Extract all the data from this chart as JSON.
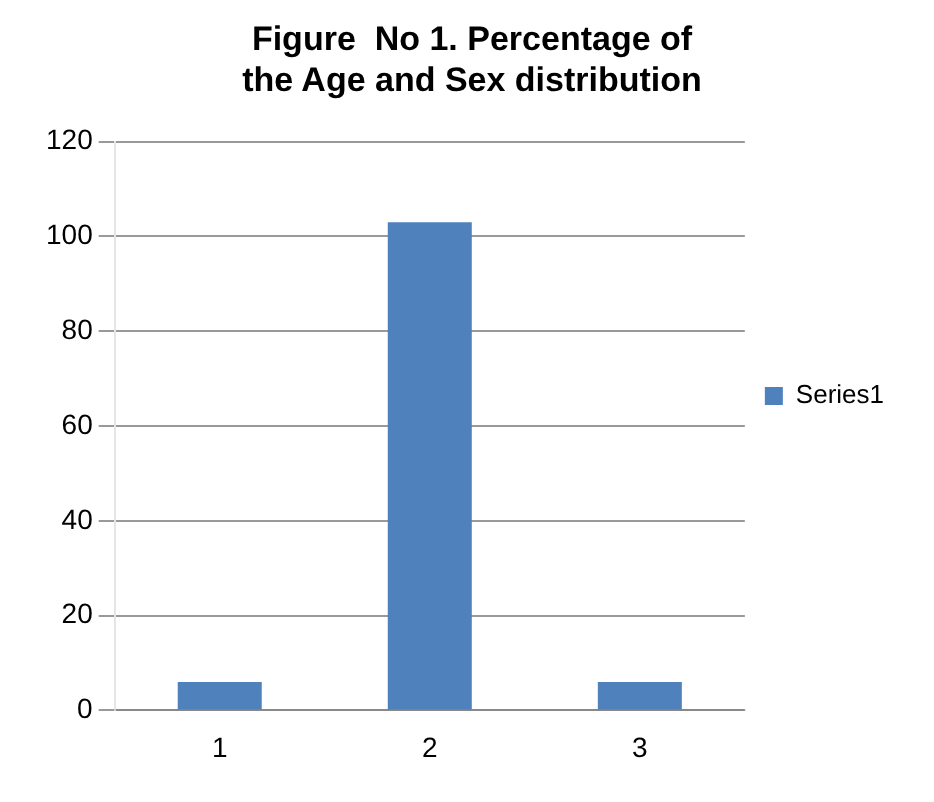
{
  "chart_data": {
    "type": "bar",
    "title": "Figure  No 1. Percentage of the Age and Sex distribution",
    "categories": [
      "1",
      "2",
      "3"
    ],
    "series": [
      {
        "name": "Series1",
        "color": "#4f81bd",
        "values": [
          6,
          103,
          6
        ]
      }
    ],
    "ylim": [
      0,
      120
    ],
    "yticks": [
      0,
      20,
      40,
      60,
      80,
      100,
      120
    ],
    "grid": "y",
    "legend": "right"
  }
}
